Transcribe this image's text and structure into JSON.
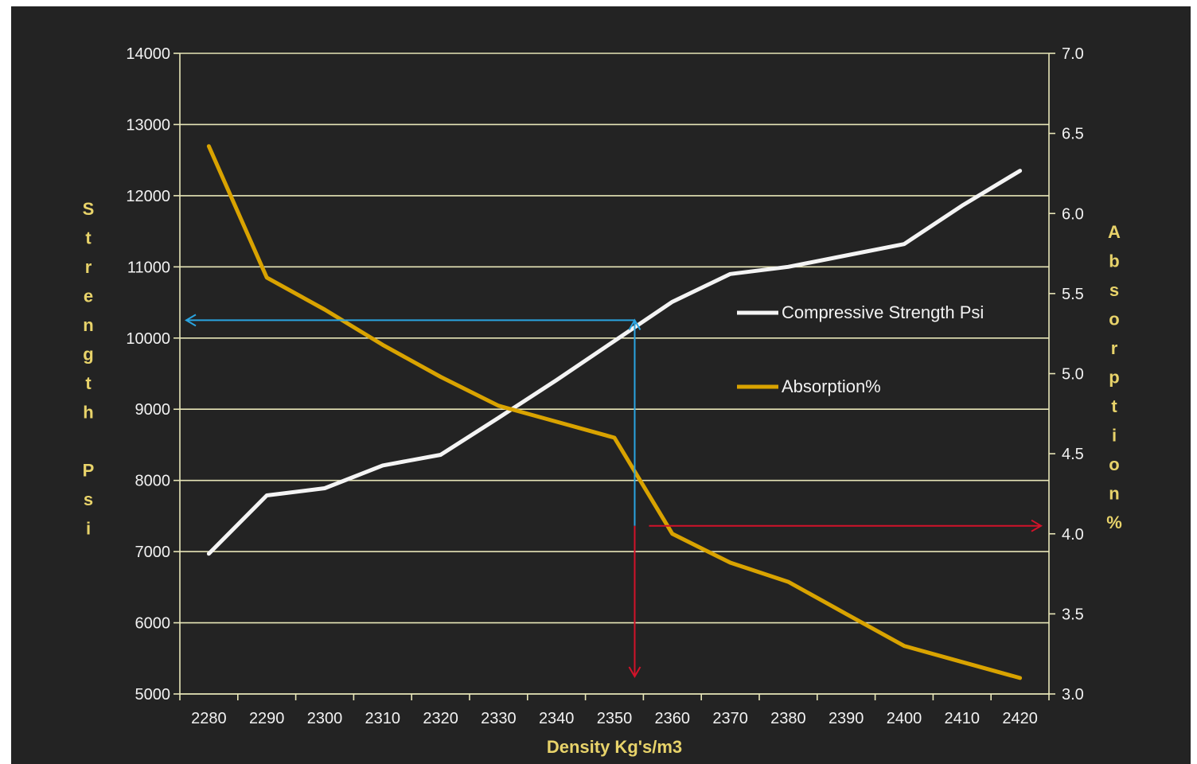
{
  "colors": {
    "background": "#232323",
    "gridline": "#e8e6b8",
    "strength_line": "#f4f4f4",
    "absorption_line": "#d9a300",
    "axis_title": "#e8d36a",
    "tick_text": "#f2f2f2",
    "blue_arrow": "#2aa4e0",
    "red_arrow": "#d2132a"
  },
  "chart_data": {
    "type": "line",
    "title": "",
    "xlabel": "Density Kg's/m3",
    "ylabel_left": "Strength Psi",
    "ylabel_right": "Absorption%",
    "x_ticks": [
      "2280",
      "2290",
      "2300",
      "2310",
      "2320",
      "2330",
      "2340",
      "2350",
      "2360",
      "2370",
      "2380",
      "2390",
      "2400",
      "2410",
      "2420"
    ],
    "y_left_ticks": [
      "14000",
      "13000",
      "12000",
      "11000",
      "10000",
      "9000",
      "8000",
      "7000",
      "6000",
      "5000"
    ],
    "y_right_ticks": [
      "7.0",
      "6.5",
      "6.0",
      "5.5",
      "5.0",
      "4.5",
      "4.0",
      "3.5",
      "3.0"
    ],
    "y_left_range": [
      5000,
      14000
    ],
    "y_right_range": [
      3.0,
      7.0
    ],
    "grid": true,
    "legend_position": "right",
    "series": [
      {
        "name": "Compressive Strength Psi",
        "axis": "left",
        "x": [
          2280,
          2290,
          2300,
          2310,
          2320,
          2330,
          2340,
          2350,
          2360,
          2370,
          2380,
          2390,
          2400,
          2410,
          2420
        ],
        "values": [
          6970,
          7790,
          7890,
          8210,
          8360,
          8880,
          9410,
          9960,
          10510,
          10900,
          11000,
          11160,
          11320,
          11860,
          12350
        ]
      },
      {
        "name": "Absorption%",
        "axis": "right",
        "x": [
          2280,
          2290,
          2300,
          2310,
          2320,
          2330,
          2340,
          2350,
          2360,
          2370,
          2380,
          2390,
          2400,
          2410,
          2420
        ],
        "values": [
          6.42,
          5.6,
          5.4,
          5.18,
          4.98,
          4.8,
          4.7,
          4.6,
          4.0,
          3.82,
          3.7,
          3.5,
          3.3,
          3.2,
          3.1
        ]
      }
    ],
    "annotations": [
      {
        "name": "blue-arrow",
        "x": 2353.5,
        "y_strength": 10250,
        "description_axis": "left"
      },
      {
        "name": "red-arrow",
        "x": 2353.5,
        "y_absorption": 4.05,
        "description_axis": "right"
      }
    ]
  }
}
